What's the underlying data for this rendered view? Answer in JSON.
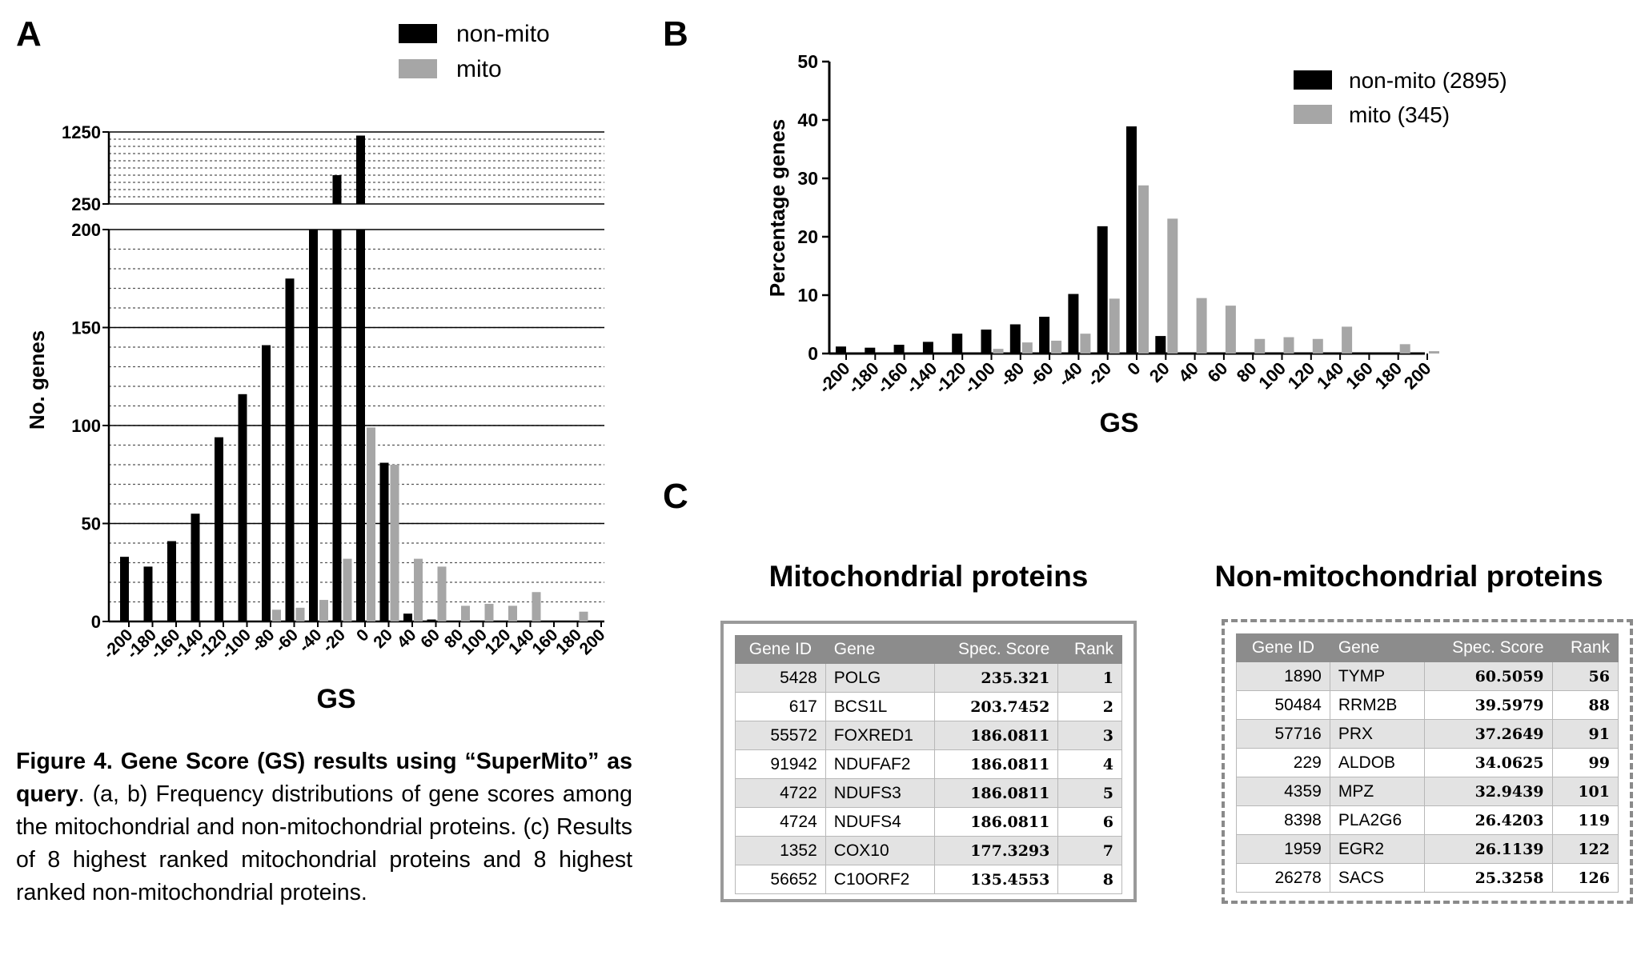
{
  "panels": {
    "a": "A",
    "b": "B",
    "c": "C"
  },
  "colors": {
    "non_mito": "#000000",
    "mito": "#a6a6a6"
  },
  "chart_data": [
    {
      "type": "bar",
      "panel": "A",
      "broken_y_axis": true,
      "ylabel": "No. genes",
      "xlabel": "GS",
      "categories": [
        "-200",
        "-180",
        "-160",
        "-140",
        "-120",
        "-100",
        "-80",
        "-60",
        "-40",
        "-20",
        "0",
        "20",
        "40",
        "60",
        "80",
        "100",
        "120",
        "140",
        "160",
        "180",
        "200"
      ],
      "yticks_lower": [
        "0",
        "50",
        "100",
        "150",
        "200"
      ],
      "yticks_upper": [
        "250",
        "1250"
      ],
      "ylim_lower": [
        0,
        200
      ],
      "ylim_upper": [
        200,
        1250
      ],
      "grid": true,
      "legend": "top",
      "series": [
        {
          "name": "non-mito",
          "values": [
            33,
            28,
            41,
            55,
            94,
            116,
            141,
            175,
            210,
            650,
            1200,
            81,
            4,
            1,
            0,
            0,
            0,
            0,
            0,
            0,
            0
          ]
        },
        {
          "name": "mito",
          "values": [
            0,
            0,
            0,
            0,
            0,
            0,
            6,
            7,
            11,
            32,
            99,
            80,
            32,
            28,
            8,
            9,
            8,
            15,
            0,
            5,
            0
          ]
        }
      ]
    },
    {
      "type": "bar",
      "panel": "B",
      "ylabel": "Percentage genes",
      "xlabel": "GS",
      "categories": [
        "-200",
        "-180",
        "-160",
        "-140",
        "-120",
        "-100",
        "-80",
        "-60",
        "-40",
        "-20",
        "0",
        "20",
        "40",
        "60",
        "80",
        "100",
        "120",
        "140",
        "160",
        "180",
        "200"
      ],
      "yticks": [
        "0",
        "10",
        "20",
        "30",
        "40",
        "50"
      ],
      "ylim": [
        0,
        50
      ],
      "grid": false,
      "legend": "top-right",
      "series": [
        {
          "name": "non-mito (2895)",
          "values": [
            1.2,
            1.0,
            1.5,
            2.0,
            3.4,
            4.1,
            5.0,
            6.3,
            10.2,
            21.8,
            38.9,
            3.0,
            0.2,
            0.1,
            0,
            0,
            0,
            0,
            0,
            0,
            0
          ]
        },
        {
          "name": "mito (345)",
          "values": [
            0,
            0,
            0,
            0,
            0,
            0.8,
            1.9,
            2.2,
            3.4,
            9.4,
            28.8,
            23.1,
            9.5,
            8.2,
            2.5,
            2.8,
            2.5,
            4.6,
            0,
            1.6,
            0.4
          ]
        }
      ]
    },
    {
      "type": "table",
      "panel": "C",
      "title": "Mitochondrial proteins",
      "columns": [
        "Gene ID",
        "Gene",
        "Spec. Score",
        "Rank"
      ],
      "rows": [
        [
          "5428",
          "POLG",
          "235.321",
          "1"
        ],
        [
          "617",
          "BCS1L",
          "203.7452",
          "2"
        ],
        [
          "55572",
          "FOXRED1",
          "186.0811",
          "3"
        ],
        [
          "91942",
          "NDUFAF2",
          "186.0811",
          "4"
        ],
        [
          "4722",
          "NDUFS3",
          "186.0811",
          "5"
        ],
        [
          "4724",
          "NDUFS4",
          "186.0811",
          "6"
        ],
        [
          "1352",
          "COX10",
          "177.3293",
          "7"
        ],
        [
          "56652",
          "C10ORF2",
          "135.4553",
          "8"
        ]
      ]
    },
    {
      "type": "table",
      "panel": "C",
      "title": "Non-mitochondrial proteins",
      "columns": [
        "Gene ID",
        "Gene",
        "Spec. Score",
        "Rank"
      ],
      "rows": [
        [
          "1890",
          "TYMP",
          "60.5059",
          "56"
        ],
        [
          "50484",
          "RRM2B",
          "39.5979",
          "88"
        ],
        [
          "57716",
          "PRX",
          "37.2649",
          "91"
        ],
        [
          "229",
          "ALDOB",
          "34.0625",
          "99"
        ],
        [
          "4359",
          "MPZ",
          "32.9439",
          "101"
        ],
        [
          "8398",
          "PLA2G6",
          "26.4203",
          "119"
        ],
        [
          "1959",
          "EGR2",
          "26.1139",
          "122"
        ],
        [
          "26278",
          "SACS",
          "25.3258",
          "126"
        ]
      ]
    }
  ],
  "caption": {
    "bold": "Figure 4. Gene Score (GS) results using “SuperMito” as query",
    "rest": ". (a, b) Frequency distributions of gene scores among the mitochondrial and non-mitochondrial proteins. (c) Results of 8 highest ranked mitochondrial proteins and 8 highest ranked non-mitochondrial proteins."
  }
}
